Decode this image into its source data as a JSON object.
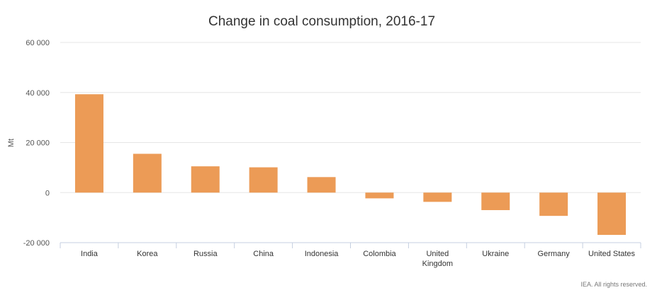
{
  "chart_data": {
    "type": "bar",
    "title": "Change in coal consumption, 2016-17",
    "ylabel": "Mt",
    "xlabel": "",
    "categories": [
      "India",
      "Korea",
      "Russia",
      "China",
      "Indonesia",
      "Colombia",
      "United Kingdom",
      "Ukraine",
      "Germany",
      "United States"
    ],
    "category_lines": [
      [
        "India"
      ],
      [
        "Korea"
      ],
      [
        "Russia"
      ],
      [
        "China"
      ],
      [
        "Indonesia"
      ],
      [
        "Colombia"
      ],
      [
        "United",
        "Kingdom"
      ],
      [
        "Ukraine"
      ],
      [
        "Germany"
      ],
      [
        "United States"
      ]
    ],
    "values": [
      39300,
      15500,
      10500,
      10100,
      6200,
      -2300,
      -3700,
      -7000,
      -9300,
      -16900
    ],
    "ylim": [
      -20000,
      60000
    ],
    "yticks": [
      -20000,
      0,
      20000,
      40000,
      60000
    ],
    "ytick_labels": [
      "-20 000",
      "0",
      "20 000",
      "40 000",
      "60 000"
    ],
    "grid": true,
    "legend": "none",
    "bar_color": "#ec9b56"
  },
  "credit": "IEA. All rights reserved."
}
